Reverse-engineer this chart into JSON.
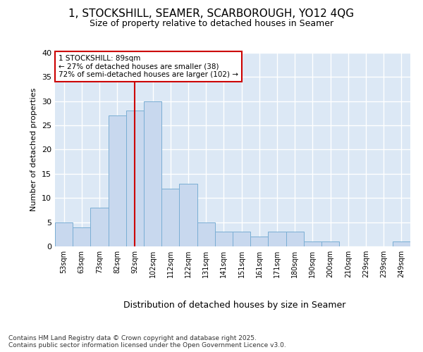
{
  "title1": "1, STOCKSHILL, SEAMER, SCARBOROUGH, YO12 4QG",
  "title2": "Size of property relative to detached houses in Seamer",
  "xlabel": "Distribution of detached houses by size in Seamer",
  "ylabel": "Number of detached properties",
  "categories": [
    "53sqm",
    "63sqm",
    "73sqm",
    "82sqm",
    "92sqm",
    "102sqm",
    "112sqm",
    "122sqm",
    "131sqm",
    "141sqm",
    "151sqm",
    "161sqm",
    "171sqm",
    "180sqm",
    "190sqm",
    "200sqm",
    "210sqm",
    "229sqm",
    "239sqm",
    "249sqm"
  ],
  "values": [
    5,
    4,
    8,
    27,
    28,
    30,
    12,
    13,
    5,
    3,
    3,
    2,
    3,
    3,
    1,
    1,
    0,
    0,
    0,
    1
  ],
  "bar_color": "#c8d8ee",
  "bar_edge_color": "#7aaed4",
  "vline_color": "#cc0000",
  "annotation_text": "1 STOCKSHILL: 89sqm\n← 27% of detached houses are smaller (38)\n72% of semi-detached houses are larger (102) →",
  "annotation_box_color": "#ffffff",
  "annotation_box_edge": "#cc0000",
  "ylim": [
    0,
    40
  ],
  "yticks": [
    0,
    5,
    10,
    15,
    20,
    25,
    30,
    35,
    40
  ],
  "footer": "Contains HM Land Registry data © Crown copyright and database right 2025.\nContains public sector information licensed under the Open Government Licence v3.0.",
  "bg_color": "#ffffff",
  "plot_bg_color": "#dce8f5",
  "grid_color": "#ffffff"
}
